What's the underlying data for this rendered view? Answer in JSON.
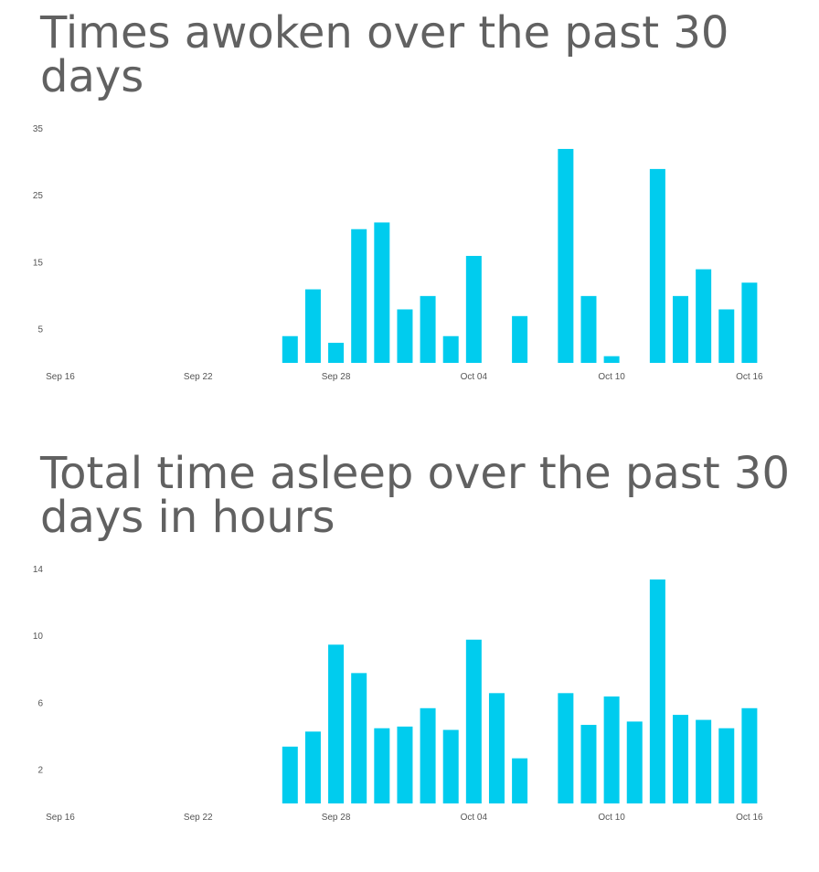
{
  "chart_data": [
    {
      "type": "bar",
      "title": "Times awoken over the past 30 days",
      "xlabel": "",
      "ylabel": "",
      "ylim": [
        0,
        35
      ],
      "yticks": [
        5,
        15,
        25,
        35
      ],
      "xticks": [
        "Sep 16",
        "Sep 22",
        "Sep 28",
        "Oct 04",
        "Oct 10",
        "Oct 16"
      ],
      "color": "#00ccee",
      "categories": [
        "Sep 16",
        "Sep 17",
        "Sep 18",
        "Sep 19",
        "Sep 20",
        "Sep 21",
        "Sep 22",
        "Sep 23",
        "Sep 24",
        "Sep 25",
        "Sep 26",
        "Sep 27",
        "Sep 28",
        "Sep 29",
        "Sep 30",
        "Oct 01",
        "Oct 02",
        "Oct 03",
        "Oct 04",
        "Oct 05",
        "Oct 06",
        "Oct 07",
        "Oct 08",
        "Oct 09",
        "Oct 10",
        "Oct 11",
        "Oct 12",
        "Oct 13",
        "Oct 14",
        "Oct 15",
        "Oct 16"
      ],
      "values": [
        null,
        null,
        null,
        null,
        null,
        null,
        null,
        null,
        null,
        null,
        4,
        11,
        3,
        20,
        21,
        8,
        10,
        4,
        16,
        null,
        7,
        null,
        32,
        10,
        1,
        null,
        29,
        10,
        14,
        8,
        12
      ]
    },
    {
      "type": "bar",
      "title": "Total time asleep over the past 30 days in hours",
      "xlabel": "",
      "ylabel": "",
      "ylim": [
        0,
        14
      ],
      "yticks": [
        2,
        6,
        10,
        14
      ],
      "xticks": [
        "Sep 16",
        "Sep 22",
        "Sep 28",
        "Oct 04",
        "Oct 10",
        "Oct 16"
      ],
      "color": "#00ccee",
      "categories": [
        "Sep 16",
        "Sep 17",
        "Sep 18",
        "Sep 19",
        "Sep 20",
        "Sep 21",
        "Sep 22",
        "Sep 23",
        "Sep 24",
        "Sep 25",
        "Sep 26",
        "Sep 27",
        "Sep 28",
        "Sep 29",
        "Sep 30",
        "Oct 01",
        "Oct 02",
        "Oct 03",
        "Oct 04",
        "Oct 05",
        "Oct 06",
        "Oct 07",
        "Oct 08",
        "Oct 09",
        "Oct 10",
        "Oct 11",
        "Oct 12",
        "Oct 13",
        "Oct 14",
        "Oct 15",
        "Oct 16"
      ],
      "values": [
        null,
        null,
        null,
        null,
        null,
        null,
        null,
        null,
        null,
        null,
        3.4,
        4.3,
        9.5,
        7.8,
        4.5,
        4.6,
        5.7,
        4.4,
        9.8,
        6.6,
        2.7,
        null,
        6.6,
        4.7,
        6.4,
        4.9,
        13.4,
        5.3,
        5.0,
        4.5,
        5.7
      ]
    }
  ]
}
